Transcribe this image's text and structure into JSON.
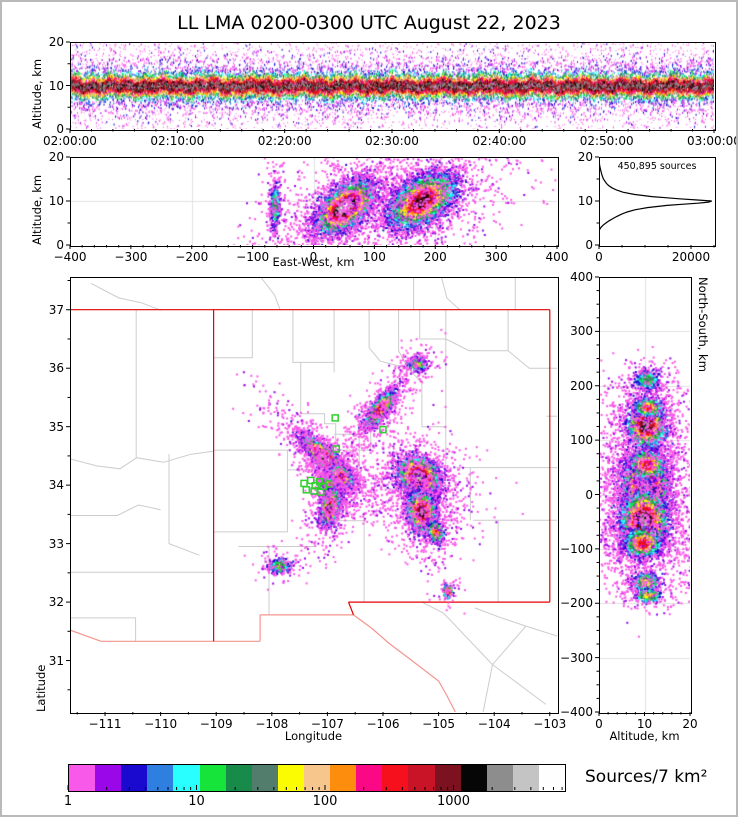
{
  "title": "LL LMA 0200-0300 UTC August 22, 2023",
  "colors": {
    "palette": [
      "#F959E8",
      "#9A07E8",
      "#1A0AD0",
      "#2E7FE0",
      "#29FFFF",
      "#17E43B",
      "#188A4A",
      "#527D6D",
      "#FBFB02",
      "#F6C68C",
      "#FC8D0D",
      "#FB0887",
      "#F6101E",
      "#C81426",
      "#7C1220",
      "#060606",
      "#8D8D8D",
      "#C4C4C4",
      "#FEFEFE"
    ],
    "state_border": "#e60000",
    "mexico_border": "#f4958e",
    "county_line": "#cccccc",
    "station": "#2fd02f",
    "gridline": "#e0e0e0",
    "histogram_line": "#000000"
  },
  "colorbar": {
    "label": "Sources/7 km²",
    "ticks": [
      "1",
      "10",
      "100",
      "1000"
    ],
    "tick_vals": [
      1,
      10,
      100,
      1000
    ],
    "decades": 3.86,
    "scale": "log"
  },
  "chart_data": [
    {
      "id": "p1",
      "type": "heatmap",
      "name": "time-height-panel",
      "ylabel": "Altitude, km",
      "xlim": [
        0,
        3600
      ],
      "ylim": [
        0,
        20
      ],
      "xtick_vals": [
        0,
        600,
        1200,
        1800,
        2400,
        3000,
        3600
      ],
      "xticks": [
        "02:00:00",
        "02:10:00",
        "02:20:00",
        "02:30:00",
        "02:40:00",
        "02:50:00",
        "03:00:00"
      ],
      "ytick_vals": [
        0,
        10,
        20
      ],
      "yticks": [
        "0",
        "10",
        "20"
      ],
      "sim": {
        "n": 26000,
        "uniform_n": 2200,
        "core_alt": 9.8,
        "core_max_idx": 16
      }
    },
    {
      "id": "p2",
      "type": "heatmap",
      "name": "east-west-altitude-panel",
      "xlabel": "East-West, km",
      "ylabel": "Altitude, km",
      "xlim": [
        -400,
        400
      ],
      "ylim": [
        0,
        20
      ],
      "xtick_vals": [
        -400,
        -300,
        -200,
        -100,
        0,
        100,
        200,
        300,
        400
      ],
      "xticks": [
        "−400",
        "−300",
        "−200",
        "−100",
        "0",
        "100",
        "200",
        "300",
        "400"
      ],
      "ytick_vals": [
        0,
        10,
        20
      ],
      "yticks": [
        "0",
        "10",
        "20"
      ],
      "grid": {
        "v": [
          -200,
          0,
          200
        ],
        "h": [
          10
        ]
      },
      "clusters": [
        {
          "x": -63,
          "y": 9,
          "sx": 4,
          "sy": 2.6,
          "rot": 0,
          "n": 420,
          "max": 7
        },
        {
          "x": 52,
          "y": 8.6,
          "sx": 24,
          "sy": 2.5,
          "rot": 4,
          "n": 4200,
          "max": 18
        },
        {
          "x": 178,
          "y": 10,
          "sx": 28,
          "sy": 2.8,
          "rot": 3,
          "n": 4200,
          "max": 15
        }
      ]
    },
    {
      "id": "p3",
      "type": "line",
      "name": "altitude-histogram-panel",
      "annotation": "450,895 sources",
      "xlim": [
        0,
        25000
      ],
      "ylim": [
        0,
        20
      ],
      "xtick_vals": [
        0,
        20000
      ],
      "xticks": [
        "0",
        "20000"
      ],
      "ytick_vals": [
        0,
        10,
        20
      ],
      "yticks": [
        "0",
        "10",
        "20"
      ],
      "profile": {
        "altitude_km": [
          20,
          19,
          18,
          17.5,
          17,
          16,
          15,
          14,
          13.5,
          13,
          12.5,
          12,
          11.5,
          11,
          10.75,
          10.5,
          10.25,
          10,
          9.75,
          9.5,
          9.25,
          9,
          8.5,
          8,
          7.5,
          7,
          6.5,
          6,
          5.5,
          5,
          4.5,
          4,
          3.5,
          3.2,
          3,
          0
        ],
        "count": [
          0,
          40,
          160,
          260,
          380,
          600,
          950,
          1600,
          2100,
          2800,
          3800,
          5200,
          7600,
          11500,
          14500,
          17500,
          21000,
          24500,
          23800,
          21500,
          18000,
          14800,
          10500,
          7800,
          6100,
          4900,
          3900,
          3000,
          2200,
          1500,
          900,
          420,
          140,
          40,
          0,
          0
        ]
      }
    },
    {
      "id": "p4",
      "type": "heatmap",
      "name": "plan-view-map",
      "xlabel": "Longitude",
      "ylabel": "Latitude",
      "xlim": [
        -111.63,
        -102.87
      ],
      "ylim": [
        30.12,
        37.56
      ],
      "xtick_vals": [
        -111,
        -110,
        -109,
        -108,
        -107,
        -106,
        -105,
        -104,
        -103
      ],
      "xticks": [
        "−111",
        "−110",
        "−109",
        "−108",
        "−107",
        "−106",
        "−105",
        "−104",
        "−103"
      ],
      "ytick_vals": [
        31,
        32,
        33,
        34,
        35,
        36,
        37
      ],
      "yticks": [
        "31",
        "32",
        "33",
        "34",
        "35",
        "36",
        "37"
      ],
      "clusters": [
        {
          "x": -105.37,
          "y": 36.07,
          "sx": 0.09,
          "sy": 0.07,
          "rot": 0,
          "n": 320,
          "max": 8
        },
        {
          "x": -106.05,
          "y": 35.3,
          "sx": 0.2,
          "sy": 0.07,
          "rot": 50,
          "n": 1500,
          "max": 14
        },
        {
          "x": -107.05,
          "y": 34.48,
          "sx": 0.26,
          "sy": 0.08,
          "rot": -40,
          "n": 2400,
          "max": 18
        },
        {
          "x": -106.75,
          "y": 34.15,
          "sx": 0.12,
          "sy": 0.08,
          "rot": -40,
          "n": 800,
          "max": 14
        },
        {
          "x": -106.9,
          "y": 33.95,
          "sx": 0.12,
          "sy": 0.05,
          "rot": -45,
          "n": 700,
          "max": 15
        },
        {
          "x": -106.95,
          "y": 33.62,
          "sx": 0.08,
          "sy": 0.16,
          "rot": -15,
          "n": 1500,
          "max": 16
        },
        {
          "x": -105.35,
          "y": 34.15,
          "sx": 0.2,
          "sy": 0.16,
          "rot": -30,
          "n": 2600,
          "max": 17
        },
        {
          "x": -105.3,
          "y": 33.55,
          "sx": 0.13,
          "sy": 0.18,
          "rot": 10,
          "n": 1700,
          "max": 16
        },
        {
          "x": -105.05,
          "y": 33.2,
          "sx": 0.07,
          "sy": 0.1,
          "rot": 20,
          "n": 350,
          "max": 12
        },
        {
          "x": -107.85,
          "y": 32.62,
          "sx": 0.1,
          "sy": 0.07,
          "rot": 0,
          "n": 300,
          "max": 8
        },
        {
          "x": -104.83,
          "y": 32.18,
          "sx": 0.05,
          "sy": 0.06,
          "rot": 0,
          "n": 160,
          "max": 12
        }
      ],
      "stations": [
        [
          -106.86,
          35.15
        ],
        [
          -106.0,
          34.95
        ],
        [
          -106.84,
          34.62
        ],
        [
          -107.42,
          34.03
        ],
        [
          -107.3,
          34.08
        ],
        [
          -107.22,
          33.99
        ],
        [
          -107.14,
          34.06
        ],
        [
          -107.07,
          33.98
        ],
        [
          -107.38,
          33.92
        ],
        [
          -107.24,
          33.9
        ],
        [
          -107.12,
          33.88
        ],
        [
          -106.98,
          34.02
        ]
      ]
    },
    {
      "id": "p5",
      "type": "heatmap",
      "name": "north-south-altitude-panel",
      "xlabel": "Altitude, km",
      "ylabel": "North-South, km",
      "xlim": [
        0,
        20
      ],
      "ylim": [
        -400,
        400
      ],
      "xtick_vals": [
        0,
        10,
        20
      ],
      "xticks": [
        "0",
        "10",
        "20"
      ],
      "ytick_vals": [
        400,
        300,
        200,
        100,
        0,
        -100,
        -200,
        -300,
        -400
      ],
      "yticks": [
        "400",
        "300",
        "200",
        "100",
        "0",
        "−100",
        "−200",
        "−300",
        "−400"
      ],
      "grid": {
        "v": [
          10
        ],
        "h": [
          -300,
          -200,
          -100,
          0,
          100,
          200,
          300
        ]
      },
      "clusters": [
        {
          "x": 10.2,
          "y": 15,
          "sx": 2.5,
          "sy": 30,
          "rot": 0,
          "n": 3200,
          "max": 18
        },
        {
          "x": 9.9,
          "y": -48,
          "sx": 2.6,
          "sy": 28,
          "rot": 0,
          "n": 3000,
          "max": 17
        },
        {
          "x": 9.6,
          "y": -90,
          "sx": 2.2,
          "sy": 14,
          "rot": 0,
          "n": 1000,
          "max": 13
        },
        {
          "x": 10.6,
          "y": 55,
          "sx": 2.0,
          "sy": 14,
          "rot": 0,
          "n": 800,
          "max": 13
        },
        {
          "x": 10.4,
          "y": 127,
          "sx": 2.2,
          "sy": 20,
          "rot": 0,
          "n": 1400,
          "max": 16
        },
        {
          "x": 10.8,
          "y": 160,
          "sx": 1.6,
          "sy": 9,
          "rot": 0,
          "n": 500,
          "max": 12
        },
        {
          "x": 10.6,
          "y": 210,
          "sx": 1.5,
          "sy": 10,
          "rot": 0,
          "n": 350,
          "max": 7
        },
        {
          "x": 10.3,
          "y": -162,
          "sx": 1.7,
          "sy": 10,
          "rot": 0,
          "n": 400,
          "max": 9
        },
        {
          "x": 10.8,
          "y": -186,
          "sx": 1.5,
          "sy": 6,
          "rot": 0,
          "n": 250,
          "max": 10
        }
      ]
    }
  ],
  "map_features": {
    "state_border": [
      [
        [
          -111.63,
          37
        ],
        [
          -103.0,
          37
        ]
      ],
      [
        [
          -109.047,
          37
        ],
        [
          -109.047,
          31.33
        ]
      ],
      [
        [
          -103.0,
          37
        ],
        [
          -103.0,
          32.0
        ]
      ],
      [
        [
          -103.0,
          32.0
        ],
        [
          -106.62,
          32.0
        ]
      ],
      [
        [
          -106.62,
          32.0
        ],
        [
          -106.53,
          31.78
        ]
      ]
    ],
    "mexico_border": [
      [
        [
          -106.53,
          31.78
        ],
        [
          -108.21,
          31.78
        ]
      ],
      [
        [
          -108.21,
          31.78
        ],
        [
          -108.21,
          31.33
        ]
      ],
      [
        [
          -108.21,
          31.33
        ],
        [
          -111.07,
          31.33
        ]
      ],
      [
        [
          -111.07,
          31.33
        ],
        [
          -111.63,
          31.52
        ]
      ],
      [
        [
          -106.53,
          31.78
        ],
        [
          -106.2,
          31.55
        ],
        [
          -105.9,
          31.3
        ],
        [
          -105.55,
          31.05
        ],
        [
          -105.0,
          30.65
        ],
        [
          -104.85,
          30.4
        ],
        [
          -104.7,
          30.12
        ]
      ]
    ],
    "county_lines": [
      [
        [
          -111.63,
          34.45
        ],
        [
          -111.15,
          34.33
        ],
        [
          -110.73,
          34.28
        ],
        [
          -110.43,
          34.47
        ],
        [
          -109.95,
          34.39
        ],
        [
          -109.45,
          34.53
        ],
        [
          -109.05,
          34.58
        ]
      ],
      [
        [
          -111.63,
          33.48
        ],
        [
          -110.78,
          33.48
        ],
        [
          -110.4,
          33.66
        ],
        [
          -110.0,
          33.58
        ]
      ],
      [
        [
          -110.44,
          37.0
        ],
        [
          -110.44,
          34.47
        ]
      ],
      [
        [
          -109.85,
          34.53
        ],
        [
          -109.85,
          33.0
        ],
        [
          -109.3,
          32.8
        ]
      ],
      [
        [
          -111.63,
          32.51
        ],
        [
          -109.05,
          32.51
        ]
      ],
      [
        [
          -111.63,
          31.73
        ],
        [
          -110.45,
          31.73
        ],
        [
          -110.45,
          31.33
        ]
      ],
      [
        [
          -111.25,
          37.45
        ],
        [
          -110.75,
          37.2
        ],
        [
          -110.35,
          37.12
        ],
        [
          -109.99,
          36.99
        ]
      ],
      [
        [
          -108.2,
          37.56
        ],
        [
          -107.95,
          37.25
        ],
        [
          -107.85,
          37.0
        ]
      ],
      [
        [
          -105.45,
          37.56
        ],
        [
          -105.45,
          37.0
        ]
      ],
      [
        [
          -104.95,
          37.56
        ],
        [
          -104.85,
          37.2
        ],
        [
          -104.62,
          37.0
        ]
      ],
      [
        [
          -103.62,
          37.56
        ],
        [
          -103.62,
          37.0
        ]
      ],
      [
        [
          -108.35,
          37.0
        ],
        [
          -108.35,
          36.18
        ],
        [
          -109.05,
          36.18
        ]
      ],
      [
        [
          -107.62,
          37.0
        ],
        [
          -107.62,
          36.1
        ],
        [
          -106.88,
          36.1
        ]
      ],
      [
        [
          -106.88,
          37.0
        ],
        [
          -106.88,
          35.93
        ]
      ],
      [
        [
          -106.25,
          37.0
        ],
        [
          -106.25,
          36.35
        ],
        [
          -106.05,
          36.12
        ]
      ],
      [
        [
          -105.72,
          37.0
        ],
        [
          -105.72,
          36.3
        ],
        [
          -105.55,
          36.0
        ]
      ],
      [
        [
          -105.34,
          37.0
        ],
        [
          -105.34,
          36.5
        ],
        [
          -104.87,
          36.5
        ],
        [
          -104.87,
          37.0
        ]
      ],
      [
        [
          -104.87,
          36.5
        ],
        [
          -104.45,
          36.3
        ],
        [
          -103.75,
          36.3
        ]
      ],
      [
        [
          -103.75,
          37.0
        ],
        [
          -103.75,
          36.3
        ],
        [
          -103.37,
          36.0
        ],
        [
          -102.87,
          36.0
        ]
      ],
      [
        [
          -109.05,
          34.6
        ],
        [
          -107.72,
          34.6
        ],
        [
          -107.72,
          33.2
        ],
        [
          -109.05,
          33.2
        ]
      ],
      [
        [
          -107.72,
          34.26
        ],
        [
          -106.43,
          34.26
        ],
        [
          -106.43,
          34.87
        ],
        [
          -106.88,
          34.87
        ]
      ],
      [
        [
          -107.48,
          36.1
        ],
        [
          -107.48,
          35.22
        ],
        [
          -107.05,
          35.22
        ],
        [
          -107.05,
          35.05
        ],
        [
          -106.85,
          35.05
        ],
        [
          -106.85,
          34.6
        ],
        [
          -106.22,
          34.6
        ]
      ],
      [
        [
          -106.43,
          35.05
        ],
        [
          -106.22,
          35.05
        ],
        [
          -106.22,
          34.6
        ]
      ],
      [
        [
          -106.05,
          36.12
        ],
        [
          -105.55,
          36.0
        ],
        [
          -105.3,
          35.75
        ],
        [
          -105.3,
          35.0
        ],
        [
          -104.87,
          35.0
        ]
      ],
      [
        [
          -104.87,
          36.5
        ],
        [
          -104.87,
          34.3
        ]
      ],
      [
        [
          -104.7,
          34.3
        ],
        [
          -102.87,
          34.3
        ]
      ],
      [
        [
          -104.43,
          34.3
        ],
        [
          -104.43,
          33.4
        ]
      ],
      [
        [
          -104.38,
          33.4
        ],
        [
          -102.87,
          33.4
        ]
      ],
      [
        [
          -103.93,
          33.4
        ],
        [
          -103.93,
          32.0
        ]
      ],
      [
        [
          -106.34,
          33.39
        ],
        [
          -106.34,
          32.0
        ]
      ],
      [
        [
          -106.9,
          33.39
        ],
        [
          -106.34,
          33.39
        ]
      ],
      [
        [
          -108.6,
          32.95
        ],
        [
          -107.2,
          32.95
        ]
      ],
      [
        [
          -108.05,
          32.95
        ],
        [
          -108.05,
          31.78
        ]
      ],
      [
        [
          -104.03,
          30.93
        ],
        [
          -104.91,
          31.81
        ],
        [
          -105.3,
          32.0
        ]
      ],
      [
        [
          -104.03,
          30.93
        ],
        [
          -103.43,
          31.59
        ],
        [
          -102.87,
          31.42
        ]
      ],
      [
        [
          -104.03,
          30.93
        ],
        [
          -103.07,
          30.25
        ]
      ],
      [
        [
          -104.03,
          30.93
        ],
        [
          -104.2,
          30.12
        ]
      ],
      [
        [
          -104.35,
          31.9
        ],
        [
          -103.9,
          31.74
        ],
        [
          -103.43,
          31.59
        ]
      ],
      [
        [
          -103.06,
          35.18
        ],
        [
          -102.87,
          35.18
        ]
      ]
    ]
  }
}
